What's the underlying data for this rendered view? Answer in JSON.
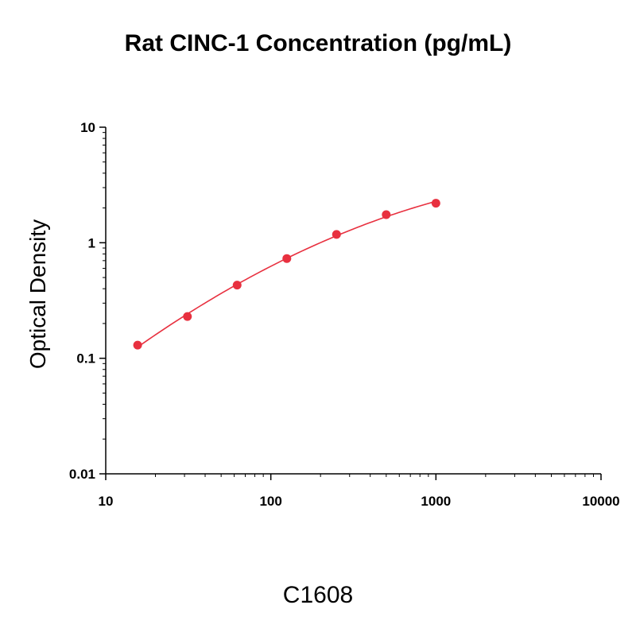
{
  "title": "Rat CINC-1 Concentration (pg/mL)",
  "footer": "C1608",
  "colors": {
    "series": "#e8303f",
    "axis": "#000000"
  },
  "chart_data": {
    "type": "scatter",
    "title": "Rat CINC-1 Concentration (pg/mL)",
    "xlabel": "",
    "ylabel": "Optical Density",
    "xscale": "log",
    "yscale": "log",
    "xlim": [
      10,
      10000
    ],
    "ylim": [
      0.01,
      10
    ],
    "xticks": [
      10,
      100,
      1000,
      10000
    ],
    "xtick_labels": [
      "10",
      "100",
      "1000",
      "10000"
    ],
    "yticks": [
      0.01,
      0.1,
      1,
      10
    ],
    "ytick_labels": [
      "0.01",
      "0.1",
      "1",
      "10"
    ],
    "grid": false,
    "series": [
      {
        "x": [
          15.6,
          31.25,
          62.5,
          125,
          250,
          500,
          1000
        ],
        "y": [
          0.13,
          0.23,
          0.43,
          0.73,
          1.18,
          1.75,
          2.2
        ],
        "line": "fitted curve",
        "marker": "circle"
      }
    ]
  }
}
